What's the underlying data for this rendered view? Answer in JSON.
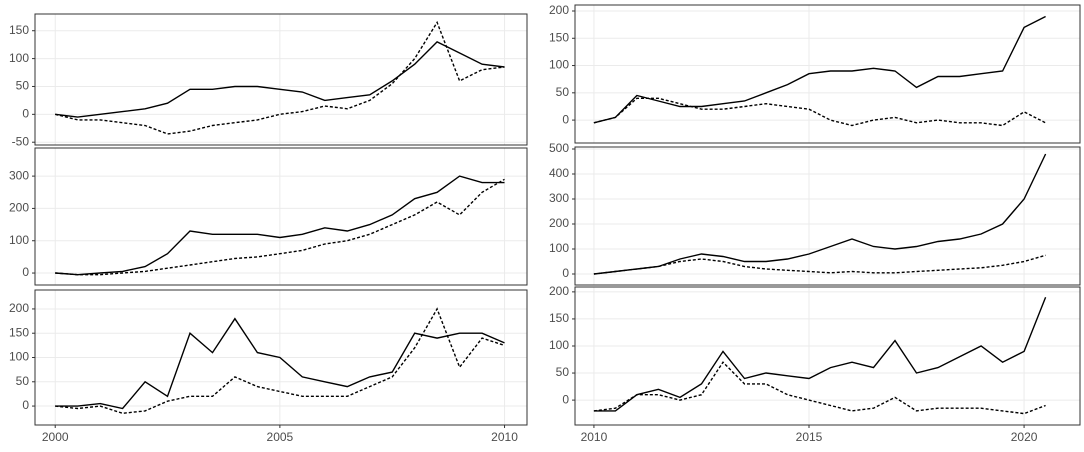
{
  "chart_data": [
    {
      "type": "line",
      "xlim": [
        1999.55,
        2010.5
      ],
      "ylim": [
        -55,
        180
      ],
      "yticks": [
        -50,
        0,
        50,
        100,
        150
      ],
      "x": [
        2000,
        2000.5,
        2001,
        2001.5,
        2002,
        2002.5,
        2003,
        2003.5,
        2004,
        2004.5,
        2005,
        2005.5,
        2006,
        2006.5,
        2007,
        2007.5,
        2008,
        2008.5,
        2009,
        2009.5,
        2010
      ],
      "series": [
        {
          "color": "#000000",
          "linestyle": "solid",
          "values": [
            0,
            -5,
            0,
            5,
            10,
            20,
            45,
            45,
            50,
            50,
            45,
            40,
            25,
            30,
            35,
            60,
            90,
            130,
            110,
            90,
            85
          ]
        },
        {
          "color": "#000000",
          "linestyle": "dashed",
          "values": [
            0,
            -10,
            -10,
            -15,
            -20,
            -35,
            -30,
            -20,
            -15,
            -10,
            0,
            5,
            15,
            10,
            25,
            55,
            100,
            165,
            60,
            80,
            85
          ]
        }
      ]
    },
    {
      "type": "line",
      "xlim": [
        1999.55,
        2010.5
      ],
      "ylim": [
        -37,
        387
      ],
      "yticks": [
        0,
        100,
        200,
        300
      ],
      "x": [
        2000,
        2000.5,
        2001,
        2001.5,
        2002,
        2002.5,
        2003,
        2003.5,
        2004,
        2004.5,
        2005,
        2005.5,
        2006,
        2006.5,
        2007,
        2007.5,
        2008,
        2008.5,
        2009,
        2009.5,
        2010
      ],
      "series": [
        {
          "color": "#000000",
          "linestyle": "solid",
          "values": [
            0,
            -5,
            0,
            5,
            20,
            60,
            130,
            120,
            120,
            120,
            110,
            120,
            140,
            130,
            150,
            180,
            230,
            250,
            300,
            280,
            280
          ]
        },
        {
          "color": "#000000",
          "linestyle": "dashed",
          "values": [
            0,
            -5,
            -5,
            0,
            5,
            15,
            25,
            35,
            45,
            50,
            60,
            70,
            90,
            100,
            120,
            150,
            180,
            220,
            180,
            250,
            290
          ]
        }
      ]
    },
    {
      "type": "line",
      "xlim": [
        1999.55,
        2010.5
      ],
      "ylim": [
        -39,
        239
      ],
      "yticks": [
        0,
        50,
        100,
        150,
        200
      ],
      "xticks": [
        2000,
        2005,
        2010
      ],
      "x": [
        2000,
        2000.5,
        2001,
        2001.5,
        2002,
        2002.5,
        2003,
        2003.5,
        2004,
        2004.5,
        2005,
        2005.5,
        2006,
        2006.5,
        2007,
        2007.5,
        2008,
        2008.5,
        2009,
        2009.5,
        2010
      ],
      "series": [
        {
          "color": "#000000",
          "linestyle": "solid",
          "values": [
            0,
            0,
            5,
            -5,
            50,
            20,
            150,
            110,
            180,
            110,
            100,
            60,
            50,
            40,
            60,
            70,
            150,
            140,
            150,
            150,
            130
          ]
        },
        {
          "color": "#000000",
          "linestyle": "dashed",
          "values": [
            0,
            -5,
            0,
            -15,
            -10,
            10,
            20,
            20,
            60,
            40,
            30,
            20,
            20,
            20,
            40,
            60,
            120,
            200,
            80,
            140,
            125
          ]
        }
      ]
    },
    {
      "type": "line",
      "xlim": [
        2009.56,
        2021.3
      ],
      "ylim": [
        -42,
        211
      ],
      "yticks": [
        0,
        50,
        100,
        150,
        200
      ],
      "x": [
        2010,
        2010.5,
        2011,
        2011.5,
        2012,
        2012.5,
        2013,
        2013.5,
        2014,
        2014.5,
        2015,
        2015.5,
        2016,
        2016.5,
        2017,
        2017.5,
        2018,
        2018.5,
        2019,
        2019.5,
        2020,
        2020.5
      ],
      "series": [
        {
          "color": "#000000",
          "linestyle": "solid",
          "values": [
            -5,
            5,
            45,
            35,
            25,
            25,
            30,
            35,
            50,
            65,
            85,
            90,
            90,
            95,
            90,
            60,
            80,
            80,
            85,
            90,
            170,
            190
          ]
        },
        {
          "color": "#000000",
          "linestyle": "dashed",
          "values": [
            -5,
            5,
            40,
            40,
            30,
            20,
            20,
            25,
            30,
            25,
            20,
            0,
            -10,
            0,
            5,
            -5,
            0,
            -5,
            -5,
            -10,
            15,
            -5
          ]
        }
      ]
    },
    {
      "type": "line",
      "xlim": [
        2009.56,
        2021.3
      ],
      "ylim": [
        -44,
        508
      ],
      "yticks": [
        0,
        100,
        200,
        300,
        400,
        500
      ],
      "x": [
        2010,
        2010.5,
        2011,
        2011.5,
        2012,
        2012.5,
        2013,
        2013.5,
        2014,
        2014.5,
        2015,
        2015.5,
        2016,
        2016.5,
        2017,
        2017.5,
        2018,
        2018.5,
        2019,
        2019.5,
        2020,
        2020.5
      ],
      "series": [
        {
          "color": "#000000",
          "linestyle": "solid",
          "values": [
            0,
            10,
            20,
            30,
            60,
            80,
            70,
            50,
            50,
            60,
            80,
            110,
            140,
            110,
            100,
            110,
            130,
            140,
            160,
            200,
            300,
            480
          ]
        },
        {
          "color": "#000000",
          "linestyle": "dashed",
          "values": [
            0,
            10,
            20,
            30,
            50,
            60,
            50,
            30,
            20,
            15,
            10,
            5,
            10,
            5,
            5,
            10,
            15,
            20,
            25,
            35,
            50,
            75
          ]
        }
      ]
    },
    {
      "type": "line",
      "xlim": [
        2009.56,
        2021.3
      ],
      "ylim": [
        -46,
        209
      ],
      "yticks": [
        0,
        50,
        100,
        150,
        200
      ],
      "xticks": [
        2010,
        2015,
        2020
      ],
      "x": [
        2010,
        2010.5,
        2011,
        2011.5,
        2012,
        2012.5,
        2013,
        2013.5,
        2014,
        2014.5,
        2015,
        2015.5,
        2016,
        2016.5,
        2017,
        2017.5,
        2018,
        2018.5,
        2019,
        2019.5,
        2020,
        2020.5
      ],
      "series": [
        {
          "color": "#000000",
          "linestyle": "solid",
          "values": [
            -20,
            -20,
            10,
            20,
            5,
            30,
            90,
            40,
            50,
            45,
            40,
            60,
            70,
            60,
            110,
            50,
            60,
            80,
            100,
            70,
            90,
            190
          ]
        },
        {
          "color": "#000000",
          "linestyle": "dashed",
          "values": [
            -20,
            -15,
            10,
            10,
            0,
            10,
            70,
            30,
            30,
            10,
            0,
            -10,
            -20,
            -15,
            5,
            -20,
            -15,
            -15,
            -15,
            -20,
            -25,
            -10
          ]
        }
      ]
    }
  ]
}
